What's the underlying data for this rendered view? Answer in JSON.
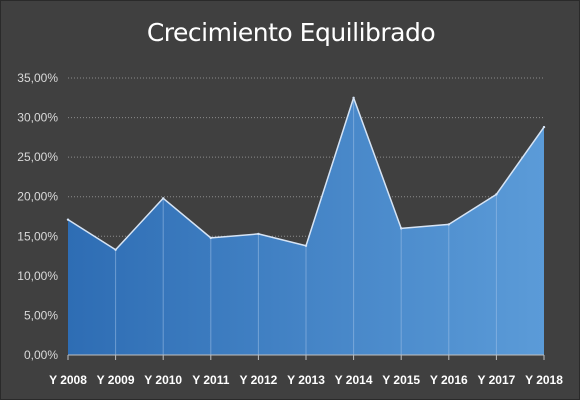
{
  "chart_data": {
    "type": "area",
    "title": "Crecimiento Equilibrado",
    "xlabel": "",
    "ylabel": "",
    "categories": [
      "Y 2008",
      "Y 2009",
      "Y 2010",
      "Y 2011",
      "Y 2012",
      "Y 2013",
      "Y 2014",
      "Y 2015",
      "Y 2016",
      "Y 2017",
      "Y 2018"
    ],
    "series": [
      {
        "values": [
          17.1,
          13.3,
          19.8,
          14.8,
          15.3,
          13.8,
          32.5,
          16.0,
          16.5,
          20.3,
          28.8
        ]
      }
    ],
    "ylim": [
      0,
      35
    ],
    "yticks": [
      "0,00%",
      "5,00%",
      "10,00%",
      "15,00%",
      "20,00%",
      "25,00%",
      "30,00%",
      "35,00%"
    ],
    "grid": "horizontal-dotted",
    "legend": "none",
    "colors": {
      "background": "#404040",
      "fill_left": "#2e6db4",
      "fill_right": "#5b9bd8",
      "line": "#d6e4f5",
      "gridline": "#8c8c8c"
    }
  }
}
